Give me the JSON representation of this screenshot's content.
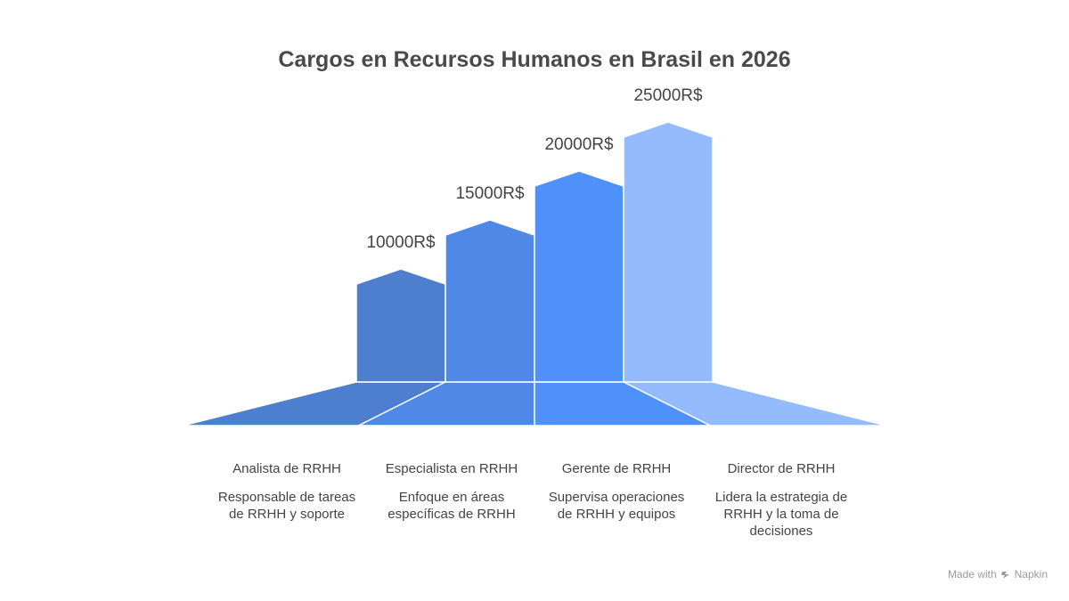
{
  "chart_data": {
    "type": "bar",
    "title": "Cargos en Recursos Humanos en Brasil en 2026",
    "categories": [
      "Analista de RRHH",
      "Especialista en RRHH",
      "Gerente de RRHH",
      "Director de RRHH"
    ],
    "values": [
      10000,
      15000,
      20000,
      25000
    ],
    "value_labels": [
      "10000R$",
      "15000R$",
      "20000R$",
      "25000R$"
    ],
    "descriptions": [
      [
        "Responsable de tareas",
        "de RRHH y soporte"
      ],
      [
        "Enfoque en áreas",
        "específicas de RRHH"
      ],
      [
        "Supervisa operaciones",
        "de RRHH y equipos"
      ],
      [
        "Lidera la estrategia de",
        "RRHH y la toma de",
        "decisiones"
      ]
    ],
    "colors": [
      "#4e7fce",
      "#4f88e6",
      "#4f91fb",
      "#94bbfd"
    ]
  },
  "footer": {
    "made_with": "Made with",
    "brand": "Napkin",
    "icon": "napkin-logo-icon"
  }
}
